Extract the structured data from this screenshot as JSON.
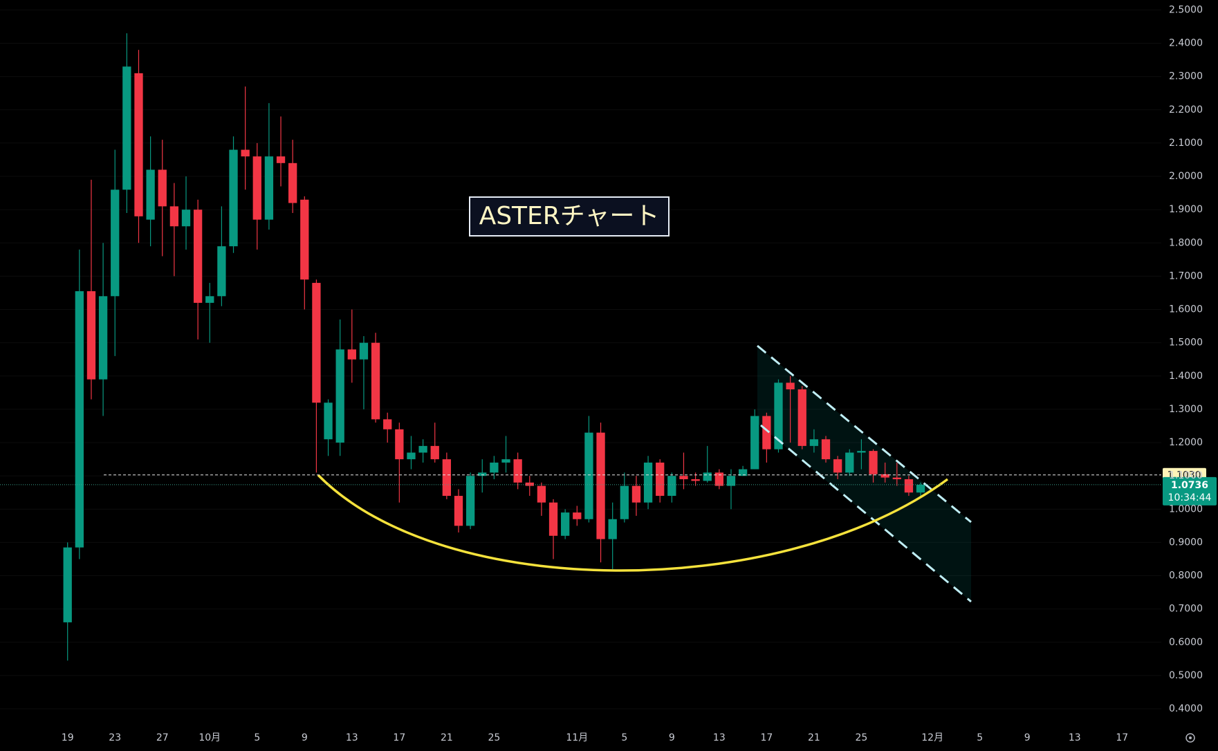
{
  "chart_data": {
    "type": "candlestick",
    "annotation": "ASTERチャート",
    "up_color": "#089981",
    "down_color": "#f23645",
    "grid": true,
    "categories": [
      "19",
      null,
      null,
      null,
      "23",
      null,
      null,
      null,
      "27",
      null,
      null,
      null,
      "10月",
      null,
      null,
      null,
      "5",
      null,
      null,
      null,
      "9",
      null,
      null,
      null,
      "13",
      null,
      null,
      null,
      "17",
      null,
      null,
      null,
      "21",
      null,
      null,
      null,
      "25",
      null,
      null,
      null,
      null,
      null,
      null,
      "11月",
      null,
      null,
      null,
      "5",
      null,
      null,
      null,
      "9",
      null,
      null,
      null,
      "13",
      null,
      null,
      null,
      "17",
      null,
      null,
      null,
      "21",
      null,
      null,
      null,
      "25",
      null,
      null,
      null,
      null,
      null,
      "12月",
      null,
      null,
      null,
      "5",
      null,
      null,
      null,
      "9",
      null,
      null,
      null,
      "13",
      null,
      null,
      null,
      "17",
      null,
      null,
      null
    ],
    "open": [
      0.66,
      0.885,
      1.655,
      1.39,
      1.64,
      1.96,
      2.31,
      1.87,
      2.02,
      1.91,
      1.85,
      1.9,
      1.62,
      1.64,
      1.79,
      2.08,
      2.06,
      1.87,
      2.06,
      2.04,
      1.93,
      1.68,
      1.21,
      1.2,
      1.48,
      1.45,
      1.5,
      1.27,
      1.24,
      1.15,
      1.17,
      1.19,
      1.15,
      1.04,
      0.95,
      1.1,
      1.11,
      1.14,
      1.15,
      1.08,
      1.07,
      1.02,
      0.92,
      0.99,
      0.97,
      1.23,
      0.91,
      0.97,
      1.07,
      1.02,
      1.14,
      1.04,
      1.1,
      1.09,
      1.085,
      1.11,
      1.07,
      1.1,
      1.12,
      1.28,
      1.18,
      1.38,
      1.36,
      1.19,
      1.21,
      1.15,
      1.11,
      1.17,
      1.175,
      1.105,
      1.095,
      1.09,
      1.05,
      null,
      null,
      null,
      null,
      null,
      null,
      null,
      null,
      null,
      null,
      null,
      null,
      null,
      null,
      null,
      null,
      null,
      null,
      null,
      null
    ],
    "high": [
      0.9,
      1.78,
      1.99,
      1.8,
      2.08,
      2.43,
      2.38,
      2.12,
      2.11,
      1.98,
      2.0,
      1.93,
      1.68,
      1.91,
      2.12,
      2.27,
      2.1,
      2.22,
      2.18,
      2.11,
      1.94,
      1.69,
      1.33,
      1.57,
      1.6,
      1.52,
      1.53,
      1.29,
      1.26,
      1.22,
      1.21,
      1.26,
      1.17,
      1.06,
      1.11,
      1.15,
      1.16,
      1.22,
      1.17,
      1.1,
      1.08,
      1.03,
      1.0,
      1.01,
      1.28,
      1.26,
      1.02,
      1.11,
      1.1,
      1.16,
      1.15,
      1.11,
      1.17,
      1.11,
      1.19,
      1.12,
      1.12,
      1.13,
      1.3,
      1.29,
      1.39,
      1.4,
      1.37,
      1.24,
      1.22,
      1.16,
      1.18,
      1.21,
      1.18,
      1.14,
      1.14,
      1.1,
      1.08,
      null,
      null,
      null,
      null,
      null,
      null,
      null,
      null,
      null,
      null,
      null,
      null,
      null,
      null,
      null,
      null,
      null,
      null,
      null,
      null
    ],
    "low": [
      0.545,
      0.85,
      1.33,
      1.28,
      1.46,
      1.89,
      1.8,
      1.79,
      1.76,
      1.7,
      1.78,
      1.51,
      1.5,
      1.61,
      1.77,
      1.96,
      1.78,
      1.84,
      1.97,
      1.89,
      1.6,
      1.11,
      1.16,
      1.16,
      1.38,
      1.3,
      1.26,
      1.2,
      1.02,
      1.12,
      1.14,
      1.14,
      1.03,
      0.93,
      0.94,
      1.05,
      1.09,
      1.11,
      1.06,
      1.04,
      0.98,
      0.85,
      0.91,
      0.95,
      0.96,
      0.84,
      0.82,
      0.96,
      0.98,
      1.0,
      1.02,
      1.02,
      1.06,
      1.07,
      1.08,
      1.06,
      1.0,
      1.1,
      1.12,
      1.14,
      1.17,
      1.2,
      1.18,
      1.17,
      1.14,
      1.09,
      1.1,
      1.12,
      1.08,
      1.08,
      1.07,
      1.04,
      1.04,
      null,
      null,
      null,
      null,
      null,
      null,
      null,
      null,
      null,
      null,
      null,
      null,
      null,
      null,
      null,
      null,
      null,
      null,
      null,
      null
    ],
    "close": [
      0.885,
      1.655,
      1.39,
      1.64,
      1.96,
      2.33,
      1.88,
      2.02,
      1.91,
      1.85,
      1.9,
      1.62,
      1.64,
      1.79,
      2.08,
      2.06,
      1.87,
      2.06,
      2.04,
      1.92,
      1.69,
      1.32,
      1.32,
      1.48,
      1.45,
      1.5,
      1.27,
      1.24,
      1.15,
      1.17,
      1.19,
      1.15,
      1.04,
      0.95,
      1.1,
      1.11,
      1.14,
      1.15,
      1.08,
      1.07,
      1.02,
      0.92,
      0.99,
      0.97,
      1.23,
      0.91,
      0.97,
      1.07,
      1.02,
      1.14,
      1.04,
      1.1,
      1.09,
      1.085,
      1.11,
      1.07,
      1.1,
      1.12,
      1.28,
      1.18,
      1.38,
      1.36,
      1.19,
      1.21,
      1.15,
      1.11,
      1.17,
      1.175,
      1.105,
      1.095,
      1.09,
      1.05,
      1.0736,
      null,
      null,
      null,
      null,
      null,
      null,
      null,
      null,
      null,
      null,
      null,
      null,
      null,
      null,
      null,
      null,
      null,
      null,
      null,
      null
    ],
    "ylim": [
      0.344,
      2.53
    ],
    "yticks": [
      {
        "value": 0.4,
        "label": "0.4000"
      },
      {
        "value": 0.5,
        "label": "0.5000"
      },
      {
        "value": 0.6,
        "label": "0.6000"
      },
      {
        "value": 0.7,
        "label": "0.7000"
      },
      {
        "value": 0.8,
        "label": "0.8000"
      },
      {
        "value": 0.9,
        "label": "0.9000"
      },
      {
        "value": 1.0,
        "label": "1.0000"
      },
      {
        "value": 1.1,
        "label": "1.1000"
      },
      {
        "value": 1.2,
        "label": "1.2000"
      },
      {
        "value": 1.3,
        "label": "1.3000"
      },
      {
        "value": 1.4,
        "label": "1.4000"
      },
      {
        "value": 1.5,
        "label": "1.5000"
      },
      {
        "value": 1.6,
        "label": "1.6000"
      },
      {
        "value": 1.7,
        "label": "1.7000"
      },
      {
        "value": 1.8,
        "label": "1.8000"
      },
      {
        "value": 1.9,
        "label": "1.9000"
      },
      {
        "value": 2.0,
        "label": "2.0000"
      },
      {
        "value": 2.1,
        "label": "2.1000"
      },
      {
        "value": 2.2,
        "label": "2.2000"
      },
      {
        "value": 2.3,
        "label": "2.3000"
      },
      {
        "value": 2.4,
        "label": "2.4000"
      },
      {
        "value": 2.5,
        "label": "2.5000"
      }
    ],
    "price_line": {
      "value": 1.103,
      "label": "1.1030"
    },
    "current_price": 1.0736,
    "countdown": "10:34:44"
  }
}
